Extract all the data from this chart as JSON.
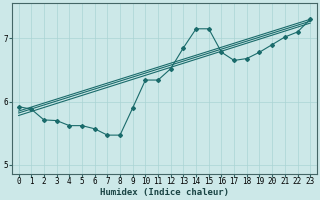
{
  "xlabel": "Humidex (Indice chaleur)",
  "xlim": [
    -0.5,
    23.5
  ],
  "ylim": [
    4.85,
    7.55
  ],
  "yticks": [
    5,
    6,
    7
  ],
  "xticks": [
    0,
    1,
    2,
    3,
    4,
    5,
    6,
    7,
    8,
    9,
    10,
    11,
    12,
    13,
    14,
    15,
    16,
    17,
    18,
    19,
    20,
    21,
    22,
    23
  ],
  "bg_color": "#cce8e8",
  "line_color": "#1a6b6b",
  "grid_color": "#aad4d4",
  "line1_x": [
    0,
    1,
    2,
    3,
    4,
    5,
    6,
    7,
    8,
    9,
    10,
    11,
    12,
    13,
    14,
    15,
    16,
    17,
    18,
    19,
    20,
    21,
    22,
    23
  ],
  "line1_y": [
    5.92,
    5.88,
    5.71,
    5.7,
    5.62,
    5.62,
    5.57,
    5.47,
    5.47,
    5.9,
    6.34,
    6.34,
    6.52,
    6.85,
    7.15,
    7.15,
    6.78,
    6.65,
    6.68,
    6.78,
    6.9,
    7.02,
    7.1,
    7.3
  ],
  "line2_x": [
    0,
    23
  ],
  "line2_y": [
    5.85,
    7.3
  ],
  "line3_x": [
    0,
    23
  ],
  "line3_y": [
    5.82,
    7.27
  ],
  "line4_x": [
    0,
    23
  ],
  "line4_y": [
    5.78,
    7.24
  ],
  "tick_fontsize": 5.5,
  "xlabel_fontsize": 6.5
}
